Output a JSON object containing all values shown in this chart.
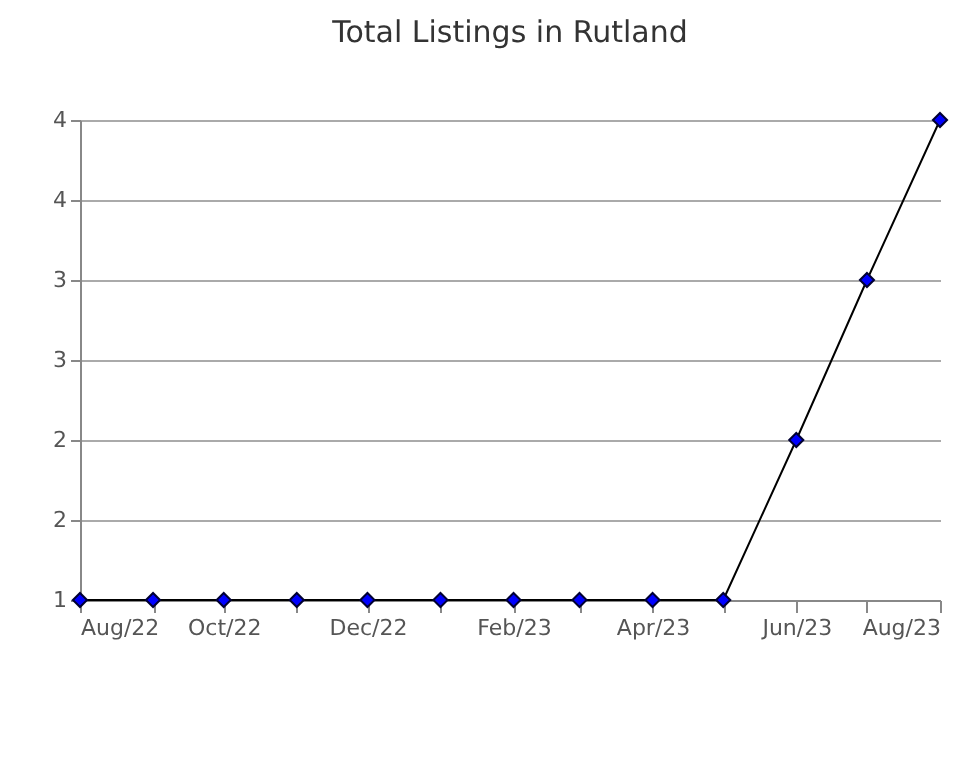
{
  "chart_data": {
    "type": "line",
    "title": "Total Listings in Rutland",
    "x": [
      "2022-08",
      "2022-09",
      "2022-10",
      "2022-11",
      "2022-12",
      "2023-01",
      "2023-02",
      "2023-03",
      "2023-04",
      "2023-05",
      "2023-06",
      "2023-07",
      "2023-08"
    ],
    "series": [
      {
        "color": "#0000ff",
        "values": [
          1,
          1,
          1,
          1,
          1,
          1,
          1,
          1,
          1,
          1,
          2,
          3,
          4
        ]
      }
    ],
    "marker": "diamond",
    "xlim": [
      "2022-08",
      "2023-08"
    ],
    "xticks": [
      {
        "value": "2022-08",
        "label": "Aug/22"
      },
      {
        "value": "2022-09",
        "label": null
      },
      {
        "value": "2022-10",
        "label": "Oct/22"
      },
      {
        "value": "2022-11",
        "label": null
      },
      {
        "value": "2022-12",
        "label": "Dec/22"
      },
      {
        "value": "2023-01",
        "label": null
      },
      {
        "value": "2023-02",
        "label": "Feb/23"
      },
      {
        "value": "2023-03",
        "label": null
      },
      {
        "value": "2023-04",
        "label": "Apr/23"
      },
      {
        "value": "2023-05",
        "label": null
      },
      {
        "value": "2023-06",
        "label": "Jun/23"
      },
      {
        "value": "2023-07",
        "label": null
      },
      {
        "value": "2023-08",
        "label": "Aug/23"
      }
    ],
    "ylim": [
      1,
      4
    ],
    "yticks": [
      1,
      {
        "value": 1.5,
        "label": "2"
      },
      2,
      {
        "value": 2.5,
        "label": "3"
      },
      3,
      {
        "value": 3.5,
        "label": "4"
      },
      4
    ],
    "grid": "y"
  }
}
